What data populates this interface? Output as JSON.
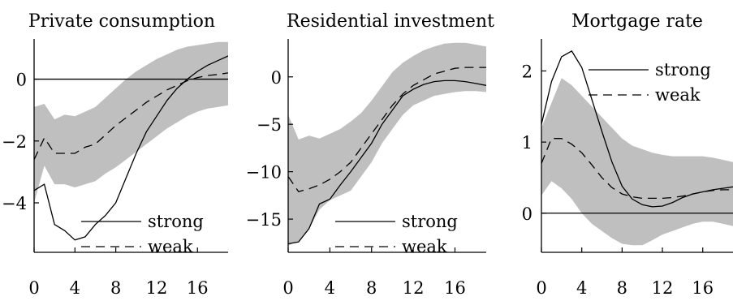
{
  "chart_data": [
    {
      "type": "line",
      "title": "Private consumption",
      "xlim": [
        0,
        19
      ],
      "ylim": [
        -5.6,
        1.3
      ],
      "x_ticks": [
        0,
        4,
        8,
        12,
        16
      ],
      "y_ticks": [
        0,
        -2,
        -4
      ],
      "zero_line": true,
      "legend_placement": "bottom-right",
      "x": [
        0,
        1,
        2,
        3,
        4,
        5,
        6,
        7,
        8,
        9,
        10,
        11,
        12,
        13,
        14,
        15,
        16,
        17,
        18,
        19
      ],
      "band": {
        "color": "#bfbfbf",
        "upper": [
          -0.9,
          -0.8,
          -1.3,
          -1.15,
          -1.2,
          -1.05,
          -0.9,
          -0.6,
          -0.3,
          0.0,
          0.25,
          0.45,
          0.65,
          0.8,
          0.95,
          1.05,
          1.1,
          1.15,
          1.2,
          1.2
        ],
        "lower": [
          -4.0,
          -2.8,
          -3.4,
          -3.4,
          -3.5,
          -3.4,
          -3.3,
          -3.05,
          -2.85,
          -2.6,
          -2.35,
          -2.1,
          -1.85,
          -1.6,
          -1.4,
          -1.2,
          -1.05,
          -0.95,
          -0.9,
          -0.85
        ]
      },
      "series": [
        {
          "name": "strong",
          "dash": "solid",
          "values": [
            -3.6,
            -3.4,
            -4.7,
            -4.9,
            -5.2,
            -5.1,
            -4.7,
            -4.4,
            -4.0,
            -3.2,
            -2.4,
            -1.7,
            -1.2,
            -0.7,
            -0.3,
            0.0,
            0.25,
            0.45,
            0.6,
            0.75
          ]
        },
        {
          "name": "weak",
          "dash": "dashed",
          "values": [
            -2.6,
            -1.9,
            -2.4,
            -2.4,
            -2.4,
            -2.2,
            -2.1,
            -1.8,
            -1.5,
            -1.25,
            -1.0,
            -0.75,
            -0.55,
            -0.35,
            -0.2,
            -0.05,
            0.05,
            0.12,
            0.15,
            0.2
          ]
        }
      ]
    },
    {
      "type": "line",
      "title": "Residential investment",
      "xlim": [
        0,
        19
      ],
      "ylim": [
        -18.5,
        4
      ],
      "x_ticks": [
        0,
        4,
        8,
        12,
        16
      ],
      "y_ticks": [
        0,
        -5,
        -10,
        -15
      ],
      "zero_line": false,
      "legend_placement": "bottom-right",
      "x": [
        0,
        1,
        2,
        3,
        4,
        5,
        6,
        7,
        8,
        9,
        10,
        11,
        12,
        13,
        14,
        15,
        16,
        17,
        18,
        19
      ],
      "band": {
        "color": "#bfbfbf",
        "upper": [
          -4.0,
          -6.6,
          -6.2,
          -6.5,
          -6.0,
          -5.5,
          -4.7,
          -3.8,
          -2.5,
          -1.0,
          0.5,
          1.5,
          2.2,
          2.8,
          3.2,
          3.5,
          3.6,
          3.6,
          3.4,
          3.2
        ],
        "lower": [
          -17.8,
          -17.3,
          -16.0,
          -14.0,
          -13.0,
          -12.5,
          -12.0,
          -10.5,
          -9.0,
          -7.0,
          -5.5,
          -4.0,
          -3.0,
          -2.5,
          -2.0,
          -1.8,
          -1.6,
          -1.5,
          -1.5,
          -1.6
        ]
      },
      "series": [
        {
          "name": "strong",
          "dash": "solid",
          "values": [
            -17.6,
            -17.4,
            -16.0,
            -13.4,
            -12.9,
            -11.4,
            -10.0,
            -8.5,
            -7.0,
            -5.0,
            -3.5,
            -2.0,
            -1.3,
            -0.8,
            -0.5,
            -0.4,
            -0.4,
            -0.5,
            -0.7,
            -0.9
          ]
        },
        {
          "name": "weak",
          "dash": "dashed",
          "values": [
            -10.5,
            -12.1,
            -11.8,
            -11.4,
            -10.8,
            -10.0,
            -9.0,
            -7.5,
            -6.0,
            -4.5,
            -3.0,
            -1.8,
            -0.9,
            -0.3,
            0.3,
            0.6,
            0.9,
            1.0,
            1.0,
            1.0
          ]
        }
      ]
    },
    {
      "type": "line",
      "title": "Mortgage rate",
      "xlim": [
        0,
        19
      ],
      "ylim": [
        -0.55,
        2.45
      ],
      "x_ticks": [
        0,
        4,
        8,
        12,
        16
      ],
      "y_ticks": [
        2,
        1,
        0
      ],
      "zero_line": true,
      "legend_placement": "top-right",
      "x": [
        0,
        1,
        2,
        3,
        4,
        5,
        6,
        7,
        8,
        9,
        10,
        11,
        12,
        13,
        14,
        15,
        16,
        17,
        18,
        19
      ],
      "band": {
        "color": "#bfbfbf",
        "upper": [
          1.2,
          1.55,
          1.9,
          1.8,
          1.65,
          1.5,
          1.35,
          1.2,
          1.05,
          0.95,
          0.9,
          0.85,
          0.82,
          0.8,
          0.8,
          0.8,
          0.8,
          0.78,
          0.75,
          0.72
        ],
        "lower": [
          0.25,
          0.45,
          0.35,
          0.2,
          0.0,
          -0.15,
          -0.25,
          -0.35,
          -0.43,
          -0.45,
          -0.45,
          -0.38,
          -0.3,
          -0.25,
          -0.2,
          -0.15,
          -0.12,
          -0.12,
          -0.15,
          -0.18
        ]
      },
      "series": [
        {
          "name": "strong",
          "dash": "solid",
          "values": [
            1.25,
            1.85,
            2.2,
            2.28,
            2.05,
            1.6,
            1.15,
            0.72,
            0.38,
            0.2,
            0.12,
            0.09,
            0.1,
            0.15,
            0.22,
            0.27,
            0.3,
            0.33,
            0.35,
            0.37
          ]
        },
        {
          "name": "weak",
          "dash": "dashed",
          "values": [
            0.7,
            1.05,
            1.05,
            0.97,
            0.85,
            0.68,
            0.5,
            0.36,
            0.27,
            0.23,
            0.21,
            0.21,
            0.21,
            0.22,
            0.24,
            0.27,
            0.3,
            0.32,
            0.33,
            0.33
          ]
        }
      ]
    }
  ]
}
